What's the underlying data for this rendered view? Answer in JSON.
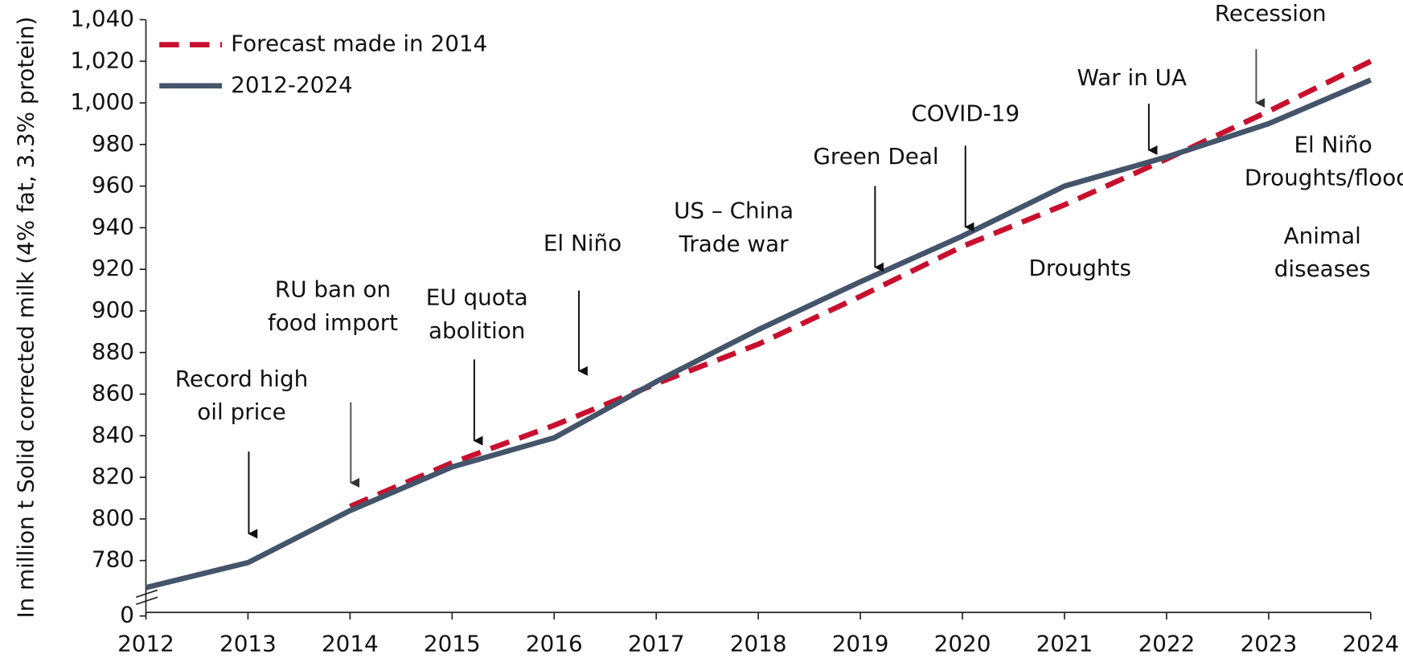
{
  "chart_data": {
    "type": "line",
    "ylabel": "In million t Solid corrected milk (4% fat, 3.3% protein)",
    "x": [
      2012,
      2013,
      2014,
      2015,
      2016,
      2017,
      2018,
      2019,
      2020,
      2021,
      2022,
      2023,
      2024
    ],
    "xlim": [
      2012,
      2024
    ],
    "xticks": [
      2012,
      2013,
      2014,
      2015,
      2016,
      2017,
      2018,
      2019,
      2020,
      2021,
      2022,
      2023,
      2024
    ],
    "ylim": [
      0,
      1040
    ],
    "axis_break": true,
    "yticks": [
      0,
      780,
      800,
      820,
      840,
      860,
      880,
      900,
      920,
      940,
      960,
      980,
      {
        "value": 1000,
        "label": "1,000"
      },
      {
        "value": 1020,
        "label": "1,020"
      },
      {
        "value": 1040,
        "label": "1,040"
      }
    ],
    "legend": "upper left",
    "series": [
      {
        "name": "Forecast made in 2014",
        "color": "#c8102e",
        "dashed": true,
        "values": [
          null,
          null,
          806,
          827,
          845,
          865,
          884,
          907,
          931,
          951,
          973,
          996,
          1020
        ]
      },
      {
        "name": "2012-2024",
        "color": "#44546a",
        "dashed": false,
        "values": [
          767,
          779,
          804,
          825,
          839,
          866,
          891,
          914,
          936,
          960,
          974,
          990,
          1011
        ]
      }
    ],
    "annotations": [
      {
        "lines": [
          "Record high",
          "oil price"
        ]
      },
      {
        "lines": [
          "RU ban on",
          "food import"
        ]
      },
      {
        "lines": [
          "EU quota",
          "abolition"
        ]
      },
      {
        "lines": [
          "El Niño"
        ]
      },
      {
        "lines": [
          "US – China",
          "Trade war"
        ]
      },
      {
        "lines": [
          "Green Deal"
        ]
      },
      {
        "lines": [
          "COVID-19"
        ]
      },
      {
        "lines": [
          "Droughts"
        ]
      },
      {
        "lines": [
          "War in UA"
        ]
      },
      {
        "lines": [
          "Recession"
        ]
      },
      {
        "lines": [
          "El Niño",
          "Droughts/floods"
        ]
      },
      {
        "lines": [
          "Animal",
          "diseases"
        ]
      }
    ]
  }
}
